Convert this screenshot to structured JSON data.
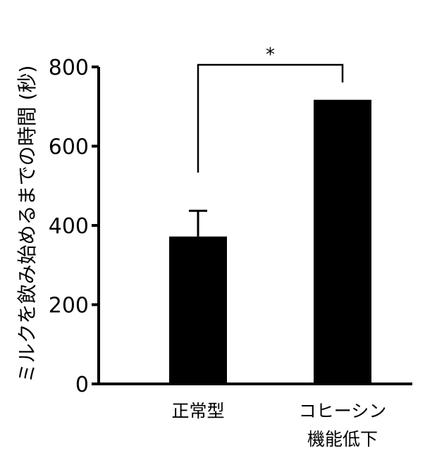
{
  "chart_data": {
    "type": "bar",
    "title": "",
    "xlabel": "",
    "ylabel": "ミルクを飲み始めるまでの時間 (秒)",
    "ylim": [
      0,
      800
    ],
    "yticks": [
      0,
      200,
      400,
      600,
      800
    ],
    "grid": false,
    "categories": [
      [
        "正常型"
      ],
      [
        "コヒーシン",
        "機能低下"
      ]
    ],
    "values": [
      372,
      717
    ],
    "errors": [
      65,
      0
    ],
    "colors": {
      "bar": "#000000",
      "axis": "#000000"
    },
    "annotations": [
      {
        "type": "significance-bracket",
        "between": [
          0,
          1
        ],
        "label": "*"
      }
    ]
  }
}
